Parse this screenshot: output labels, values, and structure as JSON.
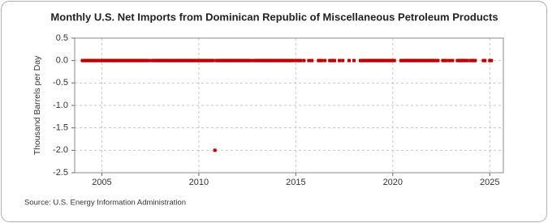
{
  "chart_data": {
    "type": "scatter",
    "title": "Monthly U.S. Net Imports from Dominican Republic of Miscellaneous Petroleum Products",
    "y_label": "Thousand Barrels per Day",
    "source": "Source: U.S. Energy Information Administration",
    "color": "#c00000",
    "grid": true,
    "xlim": [
      2003.6,
      2025.7
    ],
    "xticks": [
      2005,
      2010,
      2015,
      2020,
      2025
    ],
    "ylim": [
      -2.5,
      0.5
    ],
    "yticks": [
      {
        "value": -2.5,
        "label": "-2.5"
      },
      {
        "value": -2,
        "label": "-2.0"
      },
      {
        "value": -1.5,
        "label": "-1.5"
      },
      {
        "value": -1,
        "label": "-1.0"
      },
      {
        "value": -0.5,
        "label": "-0.5"
      },
      {
        "value": 0,
        "label": "0.0"
      },
      {
        "value": 0.5,
        "label": "0.5"
      }
    ],
    "x": [
      2004.0,
      2004.08,
      2004.17,
      2004.25,
      2004.33,
      2004.42,
      2004.5,
      2004.58,
      2004.67,
      2004.75,
      2004.83,
      2004.92,
      2005.0,
      2005.08,
      2005.17,
      2005.25,
      2005.33,
      2005.42,
      2005.5,
      2005.58,
      2005.67,
      2005.75,
      2005.83,
      2005.92,
      2006.0,
      2006.08,
      2006.17,
      2006.25,
      2006.33,
      2006.42,
      2006.5,
      2006.58,
      2006.67,
      2006.75,
      2006.83,
      2006.92,
      2007.0,
      2007.08,
      2007.17,
      2007.25,
      2007.33,
      2007.42,
      2007.58,
      2007.67,
      2007.75,
      2007.83,
      2007.92,
      2008.0,
      2008.08,
      2008.17,
      2008.25,
      2008.33,
      2008.42,
      2008.5,
      2008.58,
      2008.67,
      2008.75,
      2008.83,
      2008.92,
      2009.0,
      2009.08,
      2009.17,
      2009.25,
      2009.33,
      2009.42,
      2009.5,
      2009.58,
      2009.67,
      2009.75,
      2009.83,
      2009.92,
      2010.0,
      2010.08,
      2010.17,
      2010.25,
      2010.33,
      2010.42,
      2010.5,
      2010.58,
      2010.67,
      2010.75,
      2010.83,
      2010.92,
      2011.0,
      2011.08,
      2011.17,
      2011.25,
      2011.33,
      2011.42,
      2011.5,
      2011.58,
      2011.67,
      2011.75,
      2011.83,
      2011.92,
      2012.0,
      2012.08,
      2012.17,
      2012.25,
      2012.33,
      2012.42,
      2012.5,
      2012.58,
      2012.67,
      2012.83,
      2012.92,
      2013.0,
      2013.08,
      2013.17,
      2013.25,
      2013.33,
      2013.42,
      2013.5,
      2013.58,
      2013.67,
      2013.75,
      2013.83,
      2013.92,
      2014.0,
      2014.08,
      2014.17,
      2014.25,
      2014.33,
      2014.42,
      2014.5,
      2014.58,
      2014.67,
      2014.75,
      2014.83,
      2014.92,
      2015.08,
      2015.17,
      2015.25,
      2015.42,
      2015.67,
      2015.83,
      2016.17,
      2016.25,
      2016.33,
      2016.5,
      2016.75,
      2016.83,
      2016.92,
      2017.0,
      2017.25,
      2017.42,
      2017.75,
      2018.0,
      2018.33,
      2018.42,
      2018.5,
      2018.58,
      2018.67,
      2018.75,
      2018.83,
      2018.92,
      2019.0,
      2019.08,
      2019.17,
      2019.25,
      2019.33,
      2019.42,
      2019.5,
      2019.58,
      2019.67,
      2019.75,
      2019.83,
      2019.92,
      2020.0,
      2020.08,
      2020.42,
      2020.5,
      2020.58,
      2020.67,
      2020.75,
      2020.83,
      2020.92,
      2021.0,
      2021.08,
      2021.17,
      2021.25,
      2021.33,
      2021.42,
      2021.5,
      2021.58,
      2021.67,
      2021.75,
      2021.83,
      2021.92,
      2022.0,
      2022.08,
      2022.17,
      2022.25,
      2022.33,
      2022.58,
      2022.67,
      2022.75,
      2022.92,
      2023.08,
      2023.33,
      2023.42,
      2023.5,
      2023.58,
      2023.67,
      2023.75,
      2023.83,
      2024.0,
      2024.08,
      2024.17,
      2024.25,
      2024.67,
      2024.75,
      2025.0,
      2025.08
    ],
    "values": [
      0,
      0,
      0,
      0,
      0,
      0,
      0,
      0,
      0,
      0,
      0,
      0,
      0,
      0,
      0,
      0,
      0,
      0,
      0,
      0,
      0,
      0,
      0,
      0,
      0,
      0,
      0,
      0,
      0,
      0,
      0,
      0,
      0,
      0,
      0,
      0,
      0,
      0,
      0,
      0,
      0,
      0,
      0,
      0,
      0,
      0,
      0,
      0,
      0,
      0,
      0,
      0,
      0,
      0,
      0,
      0,
      0,
      0,
      0,
      0,
      0,
      0,
      0,
      0,
      0,
      0,
      0,
      0,
      0,
      0,
      0,
      0,
      0,
      0,
      0,
      0,
      0,
      0,
      0,
      0,
      0,
      -2,
      0,
      0,
      0,
      0,
      0,
      0,
      0,
      0,
      0,
      0,
      0,
      0,
      0,
      0,
      0,
      0,
      0,
      0,
      0,
      0,
      0,
      0,
      0,
      0,
      0,
      0,
      0,
      0,
      0,
      0,
      0,
      0,
      0,
      0,
      0,
      0,
      0,
      0,
      0,
      0,
      0,
      0,
      0,
      0,
      0,
      0,
      0,
      0,
      0,
      0,
      0,
      0,
      0,
      0,
      0,
      0,
      0,
      0,
      0,
      0,
      0,
      0,
      0,
      0,
      0,
      0,
      0,
      0,
      0,
      0,
      0,
      0,
      0,
      0,
      0,
      0,
      0,
      0,
      0,
      0,
      0,
      0,
      0,
      0,
      0,
      0,
      0,
      0,
      0,
      0,
      0,
      0,
      0,
      0,
      0,
      0,
      0,
      0,
      0,
      0,
      0,
      0,
      0,
      0,
      0,
      0,
      0,
      0,
      0,
      0,
      0,
      0,
      0,
      0,
      0,
      0,
      0,
      0,
      0,
      0,
      0,
      0,
      0,
      0,
      0,
      0,
      0,
      0,
      0,
      0,
      0,
      0
    ]
  }
}
